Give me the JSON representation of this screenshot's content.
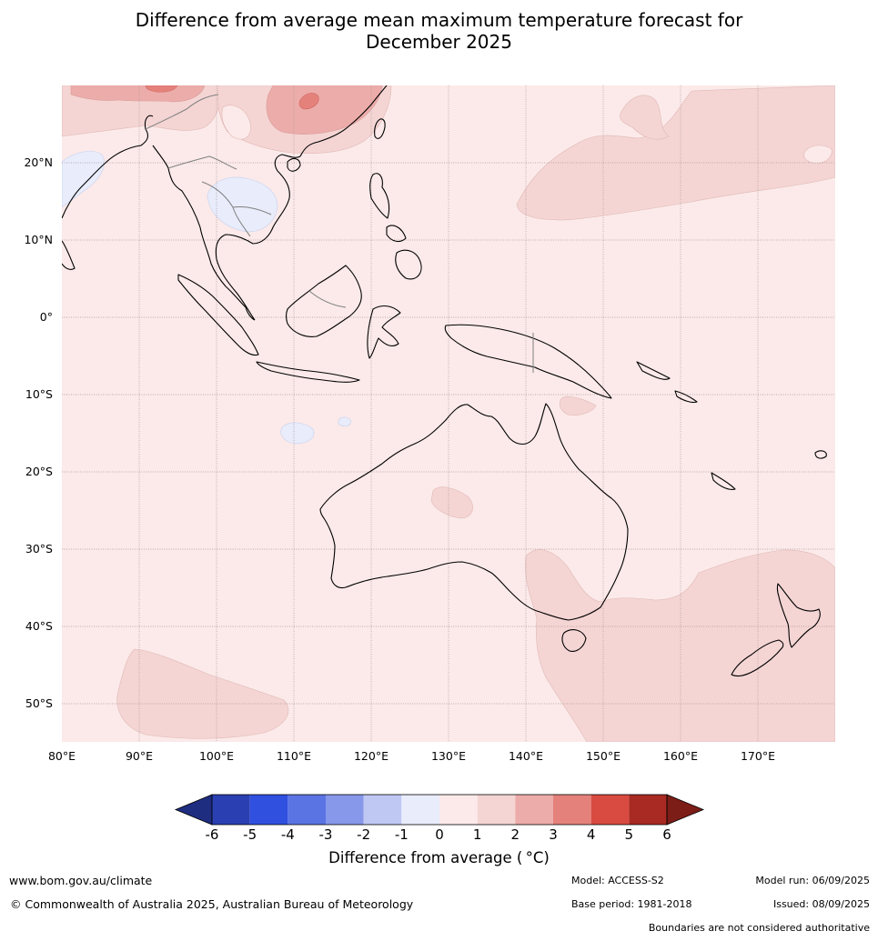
{
  "title_line1": "Difference from average mean maximum temperature forecast for",
  "title_line2": "December 2025",
  "map": {
    "lat_labels": [
      "20°N",
      "10°N",
      "0°",
      "10°S",
      "20°S",
      "30°S",
      "40°S",
      "50°S"
    ],
    "lon_labels": [
      "80°E",
      "90°E",
      "100°E",
      "110°E",
      "120°E",
      "130°E",
      "140°E",
      "150°E",
      "160°E",
      "170°E"
    ],
    "background_fill": "#fbeae9"
  },
  "colorbar": {
    "ticks": [
      "-6",
      "-5",
      "-4",
      "-3",
      "-2",
      "-1",
      "0",
      "1",
      "2",
      "3",
      "4",
      "5",
      "6"
    ],
    "colors": [
      "#1e2d80",
      "#2a40b2",
      "#3050e0",
      "#5b74e3",
      "#8798eb",
      "#bfc8f3",
      "#e8ecfb",
      "#fbeae9",
      "#f4d5d4",
      "#ecacaa",
      "#e5817b",
      "#d94a40",
      "#a82a22",
      "#7c1d18"
    ],
    "label": "Difference from average ( °C)"
  },
  "footer": {
    "website": "www.bom.gov.au/climate",
    "copyright": "© Commonwealth of Australia 2025, Australian Bureau of Meteorology",
    "model": "Model: ACCESS-S2",
    "base_period": "Base period: 1981-2018",
    "model_run": "Model run: 06/09/2025",
    "issued": "Issued: 08/09/2025",
    "disclaimer": "Boundaries are not considered authoritative"
  }
}
